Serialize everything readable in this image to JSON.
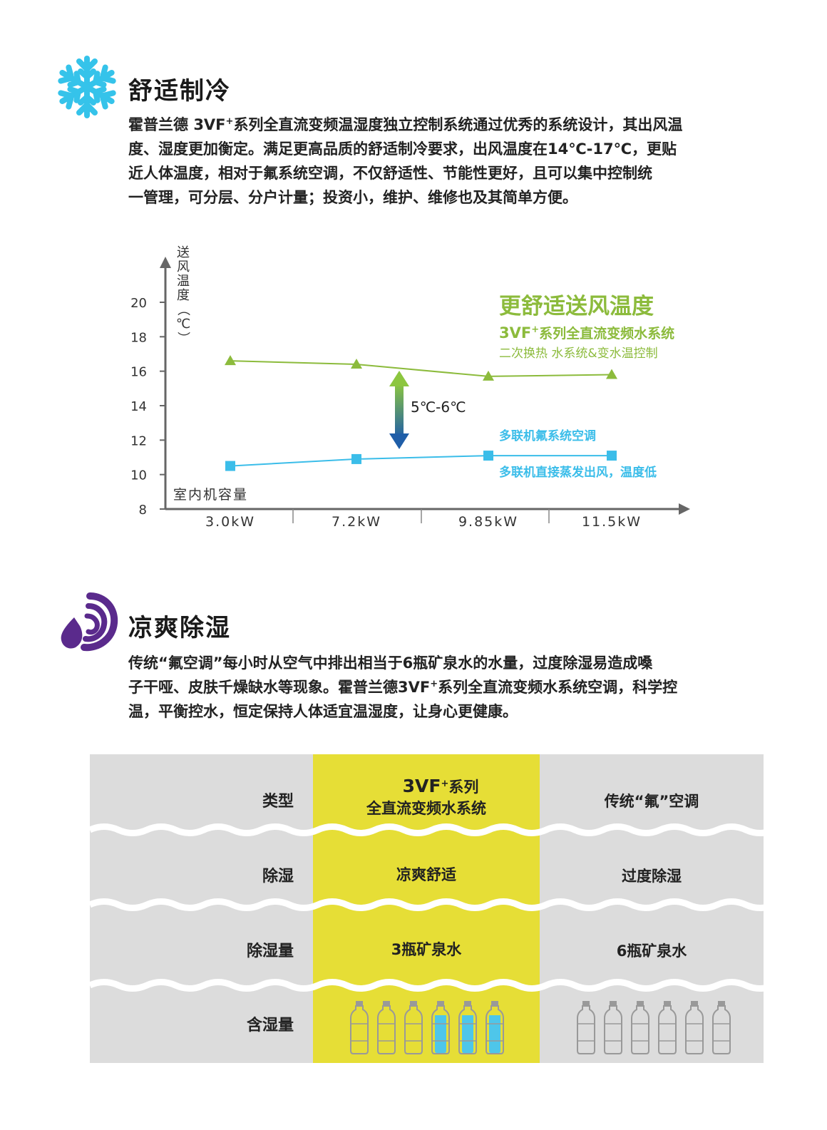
{
  "section1": {
    "title": "舒适制冷",
    "icon": "snowflake-icon",
    "icon_color": "#35c3ea",
    "paragraph": {
      "line1_a": "霍普兰德",
      "line1_b": "3VF",
      "line1_sup": "+",
      "line1_c": "系列全直流变频温湿度独立控制系统通过优秀的系统设计，其出风温",
      "line2": "度、湿度更加衡定。满足更高品质的舒适制冷要求，出风温度在14℃-17℃，更贴",
      "line3": "近人体温度，相对于氟系统空调，不仅舒适性、节能性更好，且可以集中控制统",
      "line4": "一管理，可分层、分户计量；投资小，维护、维修也及其简单方便。"
    }
  },
  "chart_data": {
    "type": "line",
    "ylabel": "送风温度（℃）",
    "xlabel": "室内机容量",
    "categories": [
      "3.0kW",
      "7.2kW",
      "9.85kW",
      "11.5kW"
    ],
    "ylim": [
      8,
      20
    ],
    "yticks": [
      8,
      10,
      12,
      14,
      16,
      18,
      20
    ],
    "series": [
      {
        "name": "3VF⁺系列全直流变频水系统",
        "marker": "triangle",
        "color": "#8cbb3c",
        "values": [
          16.6,
          16.4,
          15.7,
          15.8
        ]
      },
      {
        "name": "多联机氟系统空调",
        "marker": "square",
        "color": "#3bbde9",
        "values": [
          10.5,
          10.9,
          11.1,
          11.1
        ]
      }
    ],
    "difference_label": "5℃-6℃",
    "annotations": {
      "green_heading": "更舒适送风温度",
      "green_line1_b": "3VF",
      "green_line1_sup": "+",
      "green_line1_c": "系列全直流变频水系统",
      "green_line2": "二次换热 水系统&变水温控制",
      "blue_line1": "多联机氟系统空调",
      "blue_line2": "多联机直接蒸发出风，温度低"
    },
    "legend": "right"
  },
  "section2": {
    "title": "凉爽除湿",
    "icon": "humidity-swirl-icon",
    "icon_color": "#5a2a8c",
    "paragraph": {
      "line1": "传统“氟空调”每小时从空气中排出相当于6瓶矿泉水的水量，过度除湿易造成嗓",
      "line2_a": "子干哑、皮肤千燥缺水等现象。霍普兰德",
      "line2_b": "3VF",
      "line2_sup": "+",
      "line2_c": "系列全直流变频水系统空调，科学控",
      "line3": "温，平衡控水，恒定保持人体适宜温湿度，让身心更健康。"
    }
  },
  "table": {
    "colors": {
      "gray": "#dcdcdc",
      "highlight": "#e6de36",
      "water": "#4ec6ea"
    },
    "rows": [
      {
        "label": "类型",
        "col1_line1_b": "3VF",
        "col1_line1_sup": "+",
        "col1_line1_c": "系列",
        "col1_line2": "全直流变频水系统",
        "col2": "传统“氟”空调"
      },
      {
        "label": "除湿",
        "col1": "凉爽舒适",
        "col2": "过度除湿"
      },
      {
        "label": "除湿量",
        "col1": "3瓶矿泉水",
        "col2": "6瓶矿泉水"
      },
      {
        "label": "含湿量"
      }
    ],
    "bottles_col1": {
      "total": 6,
      "filled": 3
    },
    "bottles_col2": {
      "total": 6,
      "filled": 0
    }
  }
}
